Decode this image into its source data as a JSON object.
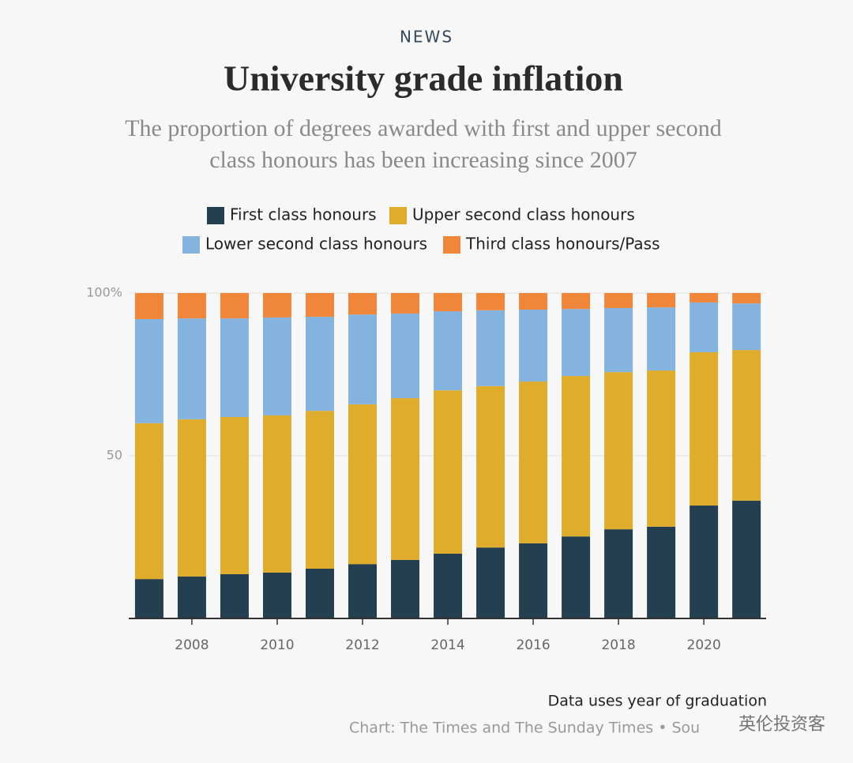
{
  "chart_data": {
    "type": "stacked-bar",
    "kicker": "NEWS",
    "title": "University grade inflation",
    "subtitle": [
      "The proportion of degrees awarded with first and upper second",
      "class honours has been increasing since 2007"
    ],
    "x": [
      2007,
      2008,
      2009,
      2010,
      2011,
      2012,
      2013,
      2014,
      2015,
      2016,
      2017,
      2018,
      2019,
      2020,
      2021
    ],
    "xlim": [
      2006.52,
      2021.46
    ],
    "xticks": [
      2008,
      2010,
      2012,
      2014,
      2016,
      2018,
      2020
    ],
    "ylim": [
      0,
      100
    ],
    "yticks": [
      50,
      {
        "value": 100,
        "label": "100%"
      }
    ],
    "grid": true,
    "series": [
      {
        "name": "First class honours",
        "color": "#233f50",
        "values": [
          12.1,
          12.9,
          13.6,
          14.1,
          15.3,
          16.7,
          18.0,
          19.9,
          21.8,
          23.1,
          25.2,
          27.4,
          28.2,
          34.7,
          36.2
        ]
      },
      {
        "name": "Upper second class honours",
        "color": "#e0ac2b",
        "values": [
          47.9,
          48.3,
          48.3,
          48.3,
          48.5,
          49.1,
          49.7,
          50.2,
          49.6,
          49.7,
          49.3,
          48.3,
          48.0,
          47.1,
          46.3
        ]
      },
      {
        "name": "Lower second class honours",
        "color": "#85b3e0",
        "values": [
          32.0,
          31.0,
          30.3,
          30.1,
          28.9,
          27.6,
          26.0,
          24.3,
          23.3,
          22.1,
          20.6,
          19.7,
          19.4,
          15.3,
          14.3
        ]
      },
      {
        "name": "Third class honours/Pass",
        "color": "#f0863a",
        "values": [
          8.0,
          7.8,
          7.8,
          7.5,
          7.3,
          6.6,
          6.3,
          5.6,
          5.3,
          5.1,
          4.9,
          4.6,
          4.4,
          2.9,
          3.2
        ]
      }
    ],
    "note": "Data uses year of graduation",
    "source": "Chart: The Times and The Sunday Times • Sou",
    "watermark": "英伦投资客"
  }
}
